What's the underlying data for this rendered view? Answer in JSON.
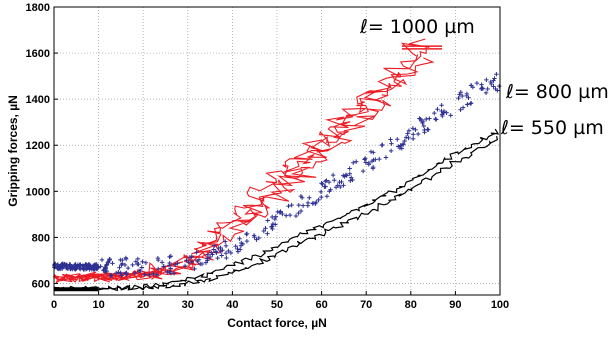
{
  "chart_data": {
    "type": "scatter",
    "title": "",
    "xlabel": "Contact force, µN",
    "ylabel": "Gripping forces, µN",
    "xlim": [
      0,
      100
    ],
    "ylim": [
      550,
      1800
    ],
    "grid": true,
    "x_ticks": [
      "0",
      "10",
      "20",
      "30",
      "40",
      "50",
      "60",
      "70",
      "80",
      "90",
      "100"
    ],
    "y_ticks": [
      "600",
      "800",
      "1000",
      "1200",
      "1400",
      "1600",
      "1800"
    ],
    "series": [
      {
        "name": "ℓ= 1000 µm",
        "style": "jagged-line",
        "color": "#ed1c24",
        "x": [
          0,
          10,
          20,
          25,
          30,
          35,
          40,
          45,
          50,
          55,
          60,
          65,
          70,
          75,
          80,
          83
        ],
        "y": [
          625,
          628,
          640,
          660,
          700,
          760,
          850,
          935,
          1030,
          1110,
          1190,
          1280,
          1370,
          1450,
          1560,
          1630
        ]
      },
      {
        "name": "ℓ= 800 µm",
        "style": "plus-markers",
        "color": "#2e3192",
        "x": [
          0,
          10,
          20,
          30,
          35,
          40,
          45,
          50,
          55,
          60,
          65,
          70,
          75,
          80,
          85,
          90,
          95,
          100
        ],
        "y": [
          675,
          672,
          672,
          690,
          720,
          760,
          810,
          880,
          940,
          1000,
          1060,
          1120,
          1180,
          1250,
          1320,
          1380,
          1440,
          1480
        ]
      },
      {
        "name": "ℓ= 550 µm",
        "style": "jagged-line",
        "color": "#000000",
        "x": [
          0,
          10,
          20,
          30,
          35,
          40,
          45,
          50,
          55,
          60,
          65,
          70,
          75,
          80,
          85,
          90,
          95,
          100
        ],
        "y": [
          578,
          578,
          585,
          615,
          640,
          680,
          715,
          760,
          810,
          850,
          895,
          940,
          990,
          1045,
          1105,
          1165,
          1215,
          1270
        ]
      }
    ],
    "annotations": [
      "ℓ= 1000 µm",
      "ℓ= 800 µm",
      "ℓ= 550 µm"
    ]
  }
}
